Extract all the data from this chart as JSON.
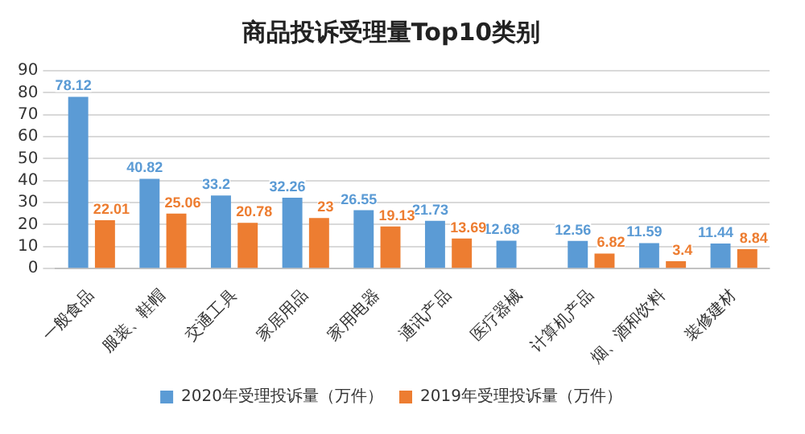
{
  "chart_data": {
    "type": "bar",
    "title": "商品投诉受理量Top10类别",
    "categories": [
      "一般食品",
      "服装、鞋帽",
      "交通工具",
      "家居用品",
      "家用电器",
      "通讯产品",
      "医疗器械",
      "计算机产品",
      "烟、酒和饮料",
      "装修建材"
    ],
    "series": [
      {
        "name": "2020年受理投诉量（万件）",
        "color": "#5b9bd5",
        "values": [
          78.12,
          40.82,
          33.2,
          32.26,
          26.55,
          21.73,
          12.68,
          12.56,
          11.59,
          11.44
        ]
      },
      {
        "name": "2019年受理投诉量（万件）",
        "color": "#ed7d31",
        "values": [
          22.01,
          25.06,
          20.78,
          23,
          19.13,
          13.69,
          null,
          6.82,
          3.4,
          8.84
        ]
      }
    ],
    "ylim": [
      0,
      90
    ],
    "yticks": [
      0,
      10,
      20,
      30,
      40,
      50,
      60,
      70,
      80,
      90
    ],
    "grid": "y",
    "legend": "bottom",
    "data_labels": true
  }
}
